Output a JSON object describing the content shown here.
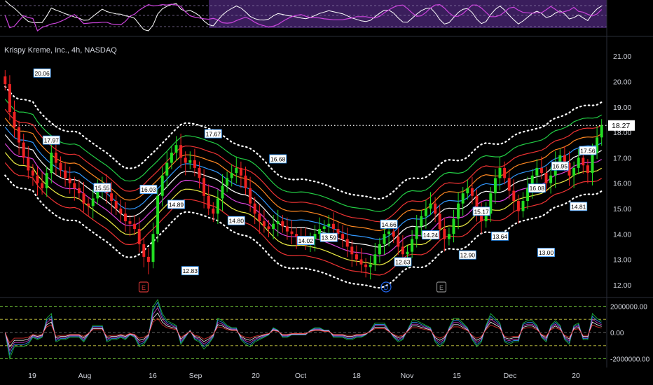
{
  "header": {
    "title": "Krispy Kreme, Inc., 4h, NASDAQ"
  },
  "colors": {
    "background": "#000000",
    "up": "#22dd22",
    "down": "#ee2222",
    "axis_text": "#d1d4dc",
    "osc_fill": "#3a1e5c",
    "osc_line1": "#ffffff",
    "osc_line2": "#cc44dd",
    "price_label_bg": "#ffffff",
    "event_red": "#cc3333",
    "event_blue": "#2266ee",
    "event_gray": "#888888"
  },
  "chart_data": {
    "type": "candlestick",
    "symbol": "Krispy Kreme, Inc.",
    "interval": "4h",
    "exchange": "NASDAQ",
    "price_axis": {
      "ticks": [
        12.0,
        13.0,
        14.0,
        15.0,
        16.0,
        17.0,
        18.0,
        19.0,
        20.0,
        21.0
      ],
      "ylim": [
        11.5,
        21.5
      ],
      "labels": [
        "12.00",
        "13.00",
        "14.00",
        "15.00",
        "16.00",
        "17.00",
        "18.00",
        "19.00",
        "20.00",
        "21.00"
      ]
    },
    "time_axis": {
      "labels": [
        "19",
        "Aug",
        "16",
        "Sep",
        "20",
        "Oct",
        "18",
        "Nov",
        "15",
        "Dec",
        "20"
      ]
    },
    "current_price": {
      "value": 18.27,
      "label": "18.27",
      "line": "dotted"
    },
    "close": [
      19.9,
      18.8,
      18.2,
      17.6,
      17.0,
      16.5,
      16.3,
      16.0,
      15.8,
      16.4,
      17.2,
      16.8,
      16.5,
      16.2,
      16.0,
      15.8,
      15.6,
      15.2,
      15.1,
      15.4,
      15.7,
      16.0,
      15.6,
      15.3,
      15.0,
      14.8,
      14.5,
      14.4,
      14.2,
      13.6,
      13.1,
      12.9,
      14.0,
      15.5,
      16.3,
      16.8,
      17.2,
      17.5,
      17.0,
      16.8,
      16.9,
      16.6,
      16.2,
      15.5,
      15.0,
      14.8,
      15.4,
      15.9,
      16.2,
      16.4,
      16.6,
      16.3,
      15.8,
      15.2,
      14.8,
      14.5,
      14.3,
      14.2,
      14.4,
      14.5,
      14.3,
      14.1,
      14.0,
      13.9,
      13.8,
      13.7,
      13.8,
      14.0,
      14.2,
      14.3,
      14.4,
      14.2,
      14.0,
      13.8,
      13.5,
      13.2,
      13.0,
      12.8,
      12.7,
      12.8,
      13.2,
      13.6,
      14.0,
      14.1,
      13.9,
      13.5,
      13.2,
      13.3,
      13.8,
      14.3,
      14.7,
      15.0,
      15.2,
      14.8,
      14.2,
      13.8,
      14.0,
      14.6,
      15.2,
      15.6,
      15.8,
      15.5,
      14.9,
      14.5,
      14.8,
      15.6,
      16.2,
      16.6,
      16.2,
      15.7,
      15.3,
      14.9,
      15.3,
      15.8,
      16.3,
      16.6,
      16.4,
      16.0,
      16.3,
      16.8,
      17.1,
      16.8,
      16.3,
      16.6,
      17.0,
      16.7,
      16.4,
      17.2,
      17.8,
      18.27
    ],
    "swing_labels": [
      "20.06",
      "17.97",
      "15.55",
      "16.03",
      "14.89",
      "12.83",
      "17.67",
      "14.80",
      "16.68",
      "14.02",
      "13.59",
      "14.66",
      "12.63",
      "14.24",
      "12.90",
      "15.17",
      "13.64",
      "16.08",
      "13.00",
      "16.95",
      "14.81",
      "17.56"
    ],
    "events": [
      "E",
      "D",
      "E"
    ],
    "series": [
      {
        "name": "band-outer-upper",
        "style": "dotted",
        "color": "#ffffff"
      },
      {
        "name": "band-green",
        "color": "#22cc44"
      },
      {
        "name": "band-red",
        "color": "#ee3333"
      },
      {
        "name": "band-orange",
        "color": "#ff8822"
      },
      {
        "name": "band-blue",
        "color": "#3399ff"
      },
      {
        "name": "band-white",
        "color": "#ffffff"
      },
      {
        "name": "band-magenta",
        "color": "#dd44dd"
      },
      {
        "name": "band-yellow",
        "color": "#eeee44"
      },
      {
        "name": "band-red-lower",
        "color": "#ee3333"
      },
      {
        "name": "band-outer-lower",
        "style": "dotted",
        "color": "#ffffff"
      }
    ],
    "oscillator_bottom": {
      "ticks": [
        2000000,
        0,
        -2000000
      ],
      "labels": [
        "2000000.00",
        "0.00",
        "-2000000.00"
      ],
      "ylim": [
        -2500000,
        2500000
      ]
    },
    "oscillator_top": {
      "grid": "dashed"
    }
  }
}
